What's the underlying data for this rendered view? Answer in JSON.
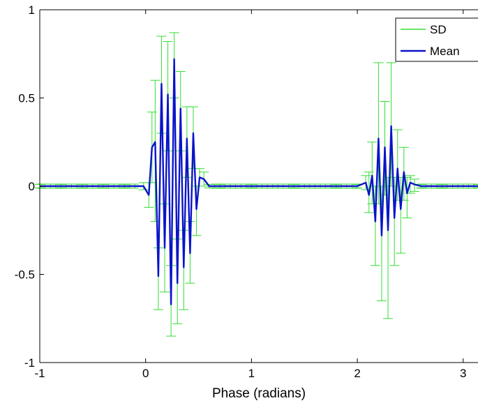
{
  "chart_data": {
    "type": "line",
    "title": "",
    "xlabel": "Phase (radians)",
    "ylabel": "",
    "xlim": [
      -1,
      3.14
    ],
    "ylim": [
      -1,
      1
    ],
    "x_ticks": [
      -1,
      0,
      1,
      2,
      3
    ],
    "y_ticks": [
      -1,
      -0.5,
      0,
      0.5,
      1
    ],
    "x_tick_labels": [
      "-1",
      "0",
      "1",
      "2",
      "3"
    ],
    "y_tick_labels": [
      "-1",
      "-0.5",
      "0",
      "0.5",
      "1"
    ],
    "grid": false,
    "legend": {
      "position": "top-right",
      "entries": [
        "SD",
        "Mean"
      ]
    },
    "colors": {
      "SD": "#33dd33",
      "Mean": "#0a14c8"
    },
    "series": [
      {
        "name": "Mean",
        "x": [
          -1.0,
          -0.8,
          -0.6,
          -0.4,
          -0.2,
          -0.02,
          0.03,
          0.06,
          0.09,
          0.12,
          0.15,
          0.18,
          0.21,
          0.24,
          0.27,
          0.3,
          0.33,
          0.36,
          0.39,
          0.42,
          0.45,
          0.48,
          0.51,
          0.55,
          0.6,
          0.7,
          1.0,
          1.4,
          1.8,
          2.0,
          2.08,
          2.11,
          2.14,
          2.17,
          2.2,
          2.23,
          2.26,
          2.29,
          2.32,
          2.35,
          2.38,
          2.41,
          2.44,
          2.47,
          2.5,
          2.54,
          2.6,
          2.8,
          3.14
        ],
        "y": [
          0.0,
          0.0,
          0.0,
          0.0,
          0.0,
          0.0,
          -0.05,
          0.22,
          0.25,
          -0.51,
          0.58,
          -0.35,
          0.52,
          -0.67,
          0.72,
          -0.55,
          0.44,
          -0.46,
          0.27,
          -0.38,
          0.3,
          -0.13,
          0.05,
          0.04,
          0.0,
          0.0,
          0.0,
          0.0,
          0.0,
          0.0,
          0.02,
          -0.05,
          0.06,
          -0.2,
          0.27,
          -0.28,
          0.22,
          -0.25,
          0.34,
          -0.18,
          0.1,
          -0.13,
          0.08,
          -0.04,
          0.02,
          0.01,
          0.0,
          0.0,
          0.0
        ]
      },
      {
        "name": "SD",
        "x": [
          -1.0,
          -0.8,
          -0.6,
          -0.4,
          -0.2,
          -0.02,
          0.03,
          0.06,
          0.09,
          0.12,
          0.15,
          0.18,
          0.21,
          0.24,
          0.27,
          0.3,
          0.33,
          0.36,
          0.39,
          0.42,
          0.45,
          0.48,
          0.51,
          0.55,
          0.6,
          0.7,
          1.0,
          1.4,
          1.8,
          2.0,
          2.08,
          2.11,
          2.14,
          2.17,
          2.2,
          2.23,
          2.26,
          2.29,
          2.32,
          2.35,
          2.38,
          2.41,
          2.44,
          2.47,
          2.5,
          2.54,
          2.6,
          2.8,
          3.14
        ],
        "upper": [
          0.01,
          0.01,
          0.01,
          0.01,
          0.01,
          0.02,
          0.02,
          0.42,
          0.6,
          -0.35,
          0.85,
          -0.1,
          0.82,
          -0.45,
          0.87,
          -0.3,
          0.65,
          -0.25,
          0.45,
          -0.2,
          0.45,
          0.0,
          0.1,
          0.08,
          0.01,
          0.01,
          0.01,
          0.01,
          0.01,
          0.01,
          0.06,
          0.08,
          0.25,
          0.0,
          0.7,
          0.0,
          0.48,
          0.05,
          0.7,
          0.05,
          0.32,
          0.05,
          0.22,
          0.05,
          0.06,
          0.04,
          0.01,
          0.01,
          0.01
        ],
        "lower": [
          -0.01,
          -0.01,
          -0.01,
          -0.01,
          -0.01,
          -0.02,
          -0.12,
          0.02,
          -0.2,
          -0.7,
          0.3,
          -0.6,
          0.2,
          -0.85,
          0.5,
          -0.78,
          0.2,
          -0.7,
          0.05,
          -0.55,
          0.1,
          -0.28,
          0.0,
          0.0,
          -0.01,
          -0.01,
          -0.01,
          -0.01,
          -0.01,
          -0.01,
          -0.02,
          -0.15,
          -0.1,
          -0.45,
          -0.1,
          -0.65,
          -0.05,
          -0.75,
          0.0,
          -0.45,
          -0.08,
          -0.38,
          -0.08,
          -0.18,
          -0.04,
          -0.03,
          -0.01,
          -0.01,
          -0.01
        ]
      }
    ]
  }
}
